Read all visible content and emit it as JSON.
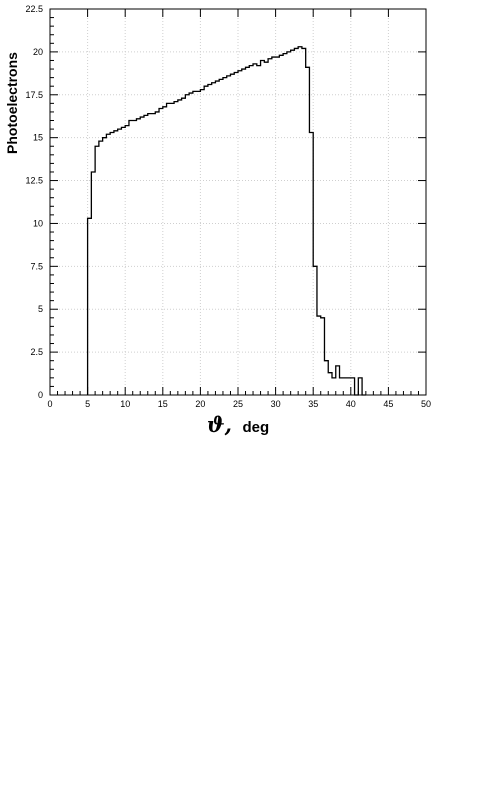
{
  "chart_data": {
    "type": "line",
    "style": "step-histogram",
    "title": "",
    "xlabel_symbol": "ϑ,",
    "xlabel_unit": "deg",
    "ylabel": "Photoelectrons",
    "xlim": [
      0,
      50
    ],
    "ylim": [
      0,
      22.5
    ],
    "x_ticks": [
      "0",
      "5",
      "10",
      "15",
      "20",
      "25",
      "30",
      "35",
      "40",
      "45",
      "50"
    ],
    "y_ticks": [
      "0",
      "2.5",
      "5",
      "7.5",
      "10",
      "12.5",
      "15",
      "17.5",
      "20",
      "22.5"
    ],
    "grid": true,
    "bin_width": 0.5,
    "x_start": 5.0,
    "y_values": [
      10.3,
      13.0,
      14.5,
      14.8,
      15.0,
      15.2,
      15.3,
      15.4,
      15.5,
      15.6,
      15.7,
      16.0,
      16.0,
      16.1,
      16.2,
      16.3,
      16.4,
      16.4,
      16.5,
      16.7,
      16.8,
      17.0,
      17.0,
      17.1,
      17.2,
      17.3,
      17.5,
      17.6,
      17.7,
      17.7,
      17.8,
      18.0,
      18.1,
      18.2,
      18.3,
      18.4,
      18.5,
      18.6,
      18.7,
      18.8,
      18.9,
      19.0,
      19.1,
      19.2,
      19.3,
      19.2,
      19.5,
      19.4,
      19.6,
      19.7,
      19.7,
      19.8,
      19.9,
      20.0,
      20.1,
      20.2,
      20.3,
      20.2,
      19.1,
      15.3,
      7.5,
      4.6,
      4.5,
      2.0,
      1.3,
      1.0,
      1.7,
      1.0,
      1.0,
      1.0,
      1.0,
      0,
      1.0,
      0
    ]
  },
  "colors": {
    "line": "#000000",
    "grid": "#cfcfcf",
    "frame": "#000000",
    "background": "#ffffff"
  }
}
